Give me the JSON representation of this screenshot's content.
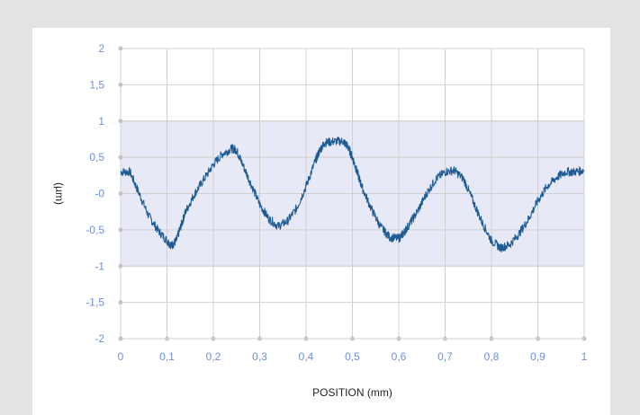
{
  "colors": {
    "background": "#e3e3e3",
    "panel": "#ffffff",
    "band": "#e7eaf6",
    "band_border": "#c9cfe6",
    "grid": "#d0d0d0",
    "tick_text": "#6f8fd6",
    "series": "#1f5b93"
  },
  "chart_data": {
    "type": "line",
    "xlabel": "POSITION (mm)",
    "ylabel": "(µm)",
    "xlim": [
      0,
      1
    ],
    "ylim": [
      -2,
      2
    ],
    "x_ticks": [
      0,
      0.1,
      0.2,
      0.3,
      0.4,
      0.5,
      0.6,
      0.7,
      0.8,
      0.9,
      1
    ],
    "x_tick_labels": [
      "0",
      "0,1",
      "0,2",
      "0,3",
      "0,4",
      "0,5",
      "0,6",
      "0,7",
      "0,8",
      "0,9",
      "1"
    ],
    "y_ticks": [
      -2,
      -1.5,
      -1,
      -0.5,
      0,
      0.5,
      1,
      1.5,
      2
    ],
    "y_tick_labels": [
      "-2",
      "-1,5",
      "-1",
      "-0,5",
      "-0",
      "0,5",
      "1",
      "1,5",
      "2"
    ],
    "tolerance_band": [
      -1,
      1
    ],
    "grid": true,
    "series": [
      {
        "x": [
          0,
          0.02,
          0.04,
          0.06,
          0.08,
          0.1,
          0.11,
          0.12,
          0.13,
          0.14,
          0.16,
          0.18,
          0.2,
          0.22,
          0.24,
          0.25,
          0.26,
          0.28,
          0.3,
          0.32,
          0.34,
          0.36,
          0.38,
          0.4,
          0.42,
          0.43,
          0.44,
          0.46,
          0.48,
          0.49,
          0.5,
          0.51,
          0.52,
          0.54,
          0.56,
          0.58,
          0.6,
          0.61,
          0.62,
          0.64,
          0.66,
          0.68,
          0.7,
          0.72,
          0.74,
          0.76,
          0.78,
          0.8,
          0.82,
          0.84,
          0.86,
          0.88,
          0.9,
          0.92,
          0.94,
          0.96,
          0.98,
          1
        ],
        "y": [
          0.3,
          0.3,
          0.0,
          -0.3,
          -0.5,
          -0.65,
          -0.72,
          -0.65,
          -0.45,
          -0.25,
          0.0,
          0.2,
          0.4,
          0.55,
          0.62,
          0.6,
          0.45,
          0.15,
          -0.15,
          -0.35,
          -0.45,
          -0.38,
          -0.2,
          0.1,
          0.45,
          0.6,
          0.7,
          0.72,
          0.72,
          0.65,
          0.5,
          0.3,
          0.1,
          -0.2,
          -0.45,
          -0.6,
          -0.62,
          -0.55,
          -0.45,
          -0.25,
          0.0,
          0.2,
          0.3,
          0.32,
          0.2,
          -0.1,
          -0.4,
          -0.65,
          -0.75,
          -0.7,
          -0.55,
          -0.35,
          -0.1,
          0.1,
          0.22,
          0.3,
          0.3,
          0.32
        ]
      }
    ]
  }
}
